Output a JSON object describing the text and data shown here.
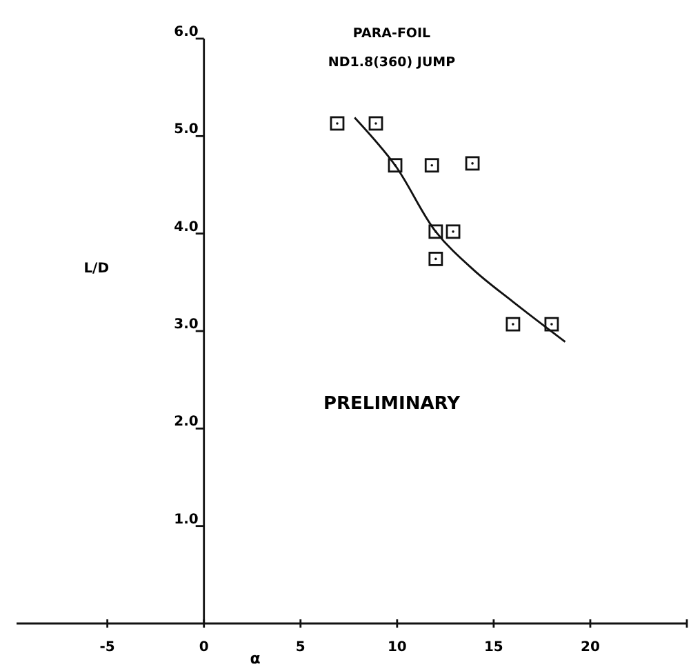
{
  "chart_data": {
    "type": "scatter",
    "title": "PARA-FOIL",
    "subtitle": "ND1.8(360) JUMP",
    "xlabel": "α",
    "ylabel": "L/D",
    "annotations": [
      "PRELIMINARY"
    ],
    "marker": "square",
    "grid": false,
    "xlim": [
      -9.7,
      25
    ],
    "xticks": [
      -5,
      0,
      5,
      10,
      15,
      20,
      {
        "value": 25,
        "label": null
      }
    ],
    "ylim": [
      0,
      6
    ],
    "yticks": [
      {
        "value": 1,
        "label": "1.0"
      },
      {
        "value": 2,
        "label": "2.0"
      },
      {
        "value": 3,
        "label": "3.0"
      },
      {
        "value": 4,
        "label": "4.0"
      },
      {
        "value": 5,
        "label": "5.0"
      },
      {
        "value": 6,
        "label": "6.0"
      }
    ],
    "series": [
      {
        "color": "#111111",
        "x": [
          6.9,
          8.9,
          9.9,
          11.8,
          13.9,
          12.0,
          12.9,
          12.0,
          16.0,
          18.0
        ],
        "values": [
          5.13,
          5.13,
          4.7,
          4.7,
          4.72,
          4.02,
          4.02,
          3.74,
          3.07,
          3.07
        ]
      },
      {
        "type": "line",
        "color": "#111111",
        "marker": "none",
        "x": [
          7.8,
          9.9,
          12.0,
          14.0,
          16.0,
          18.7
        ],
        "values": [
          5.19,
          4.7,
          4.02,
          3.62,
          3.3,
          2.89
        ]
      }
    ]
  }
}
